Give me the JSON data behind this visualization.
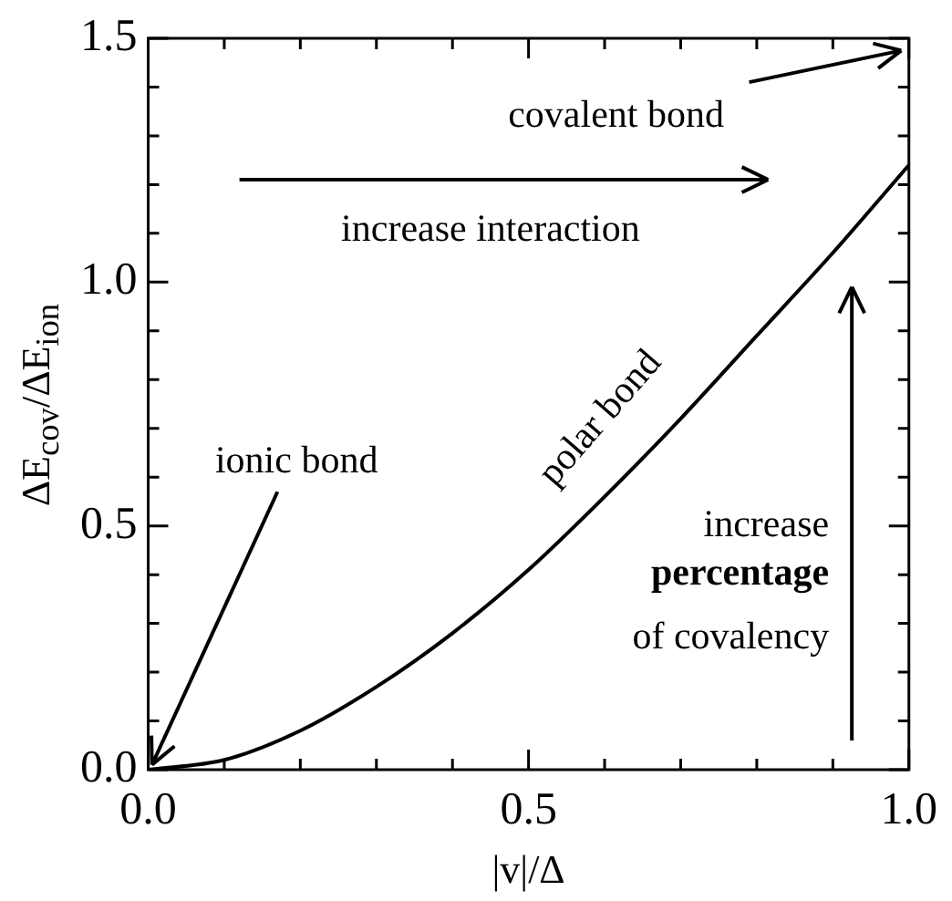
{
  "chart_data": {
    "type": "line",
    "xlabel": "|v|/Δ",
    "ylabel": "ΔE$_{cov}$/ΔE$_{ion}$",
    "x": [
      0,
      0.1,
      0.2,
      0.3,
      0.4,
      0.5,
      0.6,
      0.7,
      0.8,
      0.9,
      1.0
    ],
    "series": [
      {
        "color": "#000000",
        "values": [
          0,
          0.02,
          0.08,
          0.17,
          0.28,
          0.41,
          0.56,
          0.72,
          0.89,
          1.06,
          1.24
        ]
      }
    ],
    "marker": "none",
    "line_style": "solid",
    "xlim": [
      0,
      1
    ],
    "ylim": [
      0,
      1.5
    ],
    "xticks": [
      {
        "value": 0,
        "label": "0.0"
      },
      {
        "value": 0.1,
        "label": null
      },
      {
        "value": 0.2,
        "label": null
      },
      {
        "value": 0.3,
        "label": null
      },
      {
        "value": 0.4,
        "label": null
      },
      {
        "value": 0.5,
        "label": "0.5"
      },
      {
        "value": 0.6,
        "label": null
      },
      {
        "value": 0.7,
        "label": null
      },
      {
        "value": 0.8,
        "label": null
      },
      {
        "value": 0.9,
        "label": null
      },
      {
        "value": 1,
        "label": "1.0"
      }
    ],
    "yticks": [
      {
        "value": 0,
        "label": "0.0"
      },
      {
        "value": 0.1,
        "label": null
      },
      {
        "value": 0.2,
        "label": null
      },
      {
        "value": 0.3,
        "label": null
      },
      {
        "value": 0.4,
        "label": null
      },
      {
        "value": 0.5,
        "label": "0.5"
      },
      {
        "value": 0.6,
        "label": null
      },
      {
        "value": 0.7,
        "label": null
      },
      {
        "value": 0.8,
        "label": null
      },
      {
        "value": 0.9,
        "label": null
      },
      {
        "value": 1,
        "label": "1.0"
      },
      {
        "value": 1.1,
        "label": null
      },
      {
        "value": 1.2,
        "label": null
      },
      {
        "value": 1.3,
        "label": null
      },
      {
        "value": 1.4,
        "label": null
      },
      {
        "value": 1.5,
        "label": "1.5"
      }
    ],
    "annotations": [
      "covalent bond",
      "increase interaction",
      {
        "text": "ionic bond",
        "x": 0,
        "y": 0
      },
      "polar bond",
      "increase",
      "percentage",
      "of covalency"
    ]
  }
}
